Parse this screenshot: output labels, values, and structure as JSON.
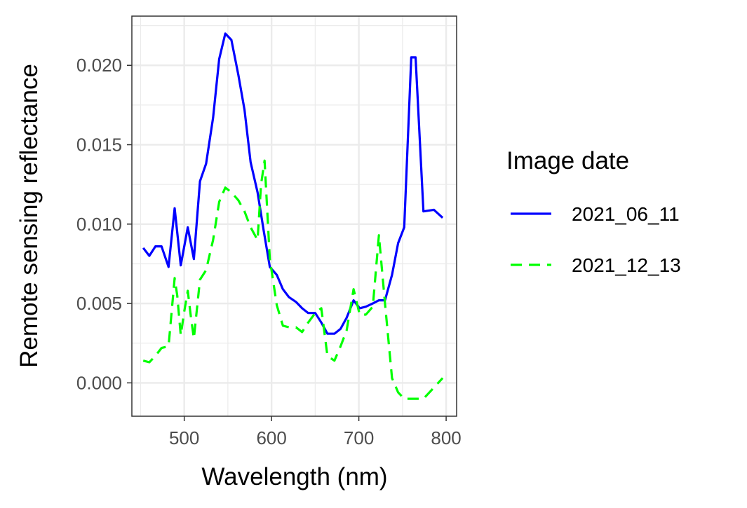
{
  "chart_data": {
    "type": "line",
    "title": "",
    "xlabel": "Wavelength (nm)",
    "ylabel": "Remote sensing reflectance",
    "xlim": [
      440,
      812
    ],
    "ylim": [
      -0.0021,
      0.0231
    ],
    "x_ticks": [
      500,
      600,
      700,
      800
    ],
    "x_tick_labels": [
      "500",
      "600",
      "700",
      "800"
    ],
    "y_ticks": [
      0.0,
      0.005,
      0.01,
      0.015,
      0.02
    ],
    "y_tick_labels": [
      "0.000",
      "0.005",
      "0.010",
      "0.015",
      "0.020"
    ],
    "grid": true,
    "legend": {
      "title": "Image date",
      "position": "right"
    },
    "series": [
      {
        "name": "2021_06_11",
        "color": "#0000ff",
        "dash": "solid",
        "x": [
          453,
          460,
          467,
          474,
          482,
          489,
          496,
          504,
          511,
          518,
          525,
          533,
          540,
          547,
          554,
          562,
          569,
          576,
          584,
          591,
          598,
          606,
          613,
          620,
          628,
          635,
          642,
          650,
          657,
          664,
          672,
          679,
          686,
          694,
          701,
          708,
          716,
          723,
          730,
          738,
          745,
          752,
          760,
          765,
          774,
          786,
          796
        ],
        "y": [
          0.0085,
          0.008,
          0.0086,
          0.0086,
          0.0073,
          0.011,
          0.0074,
          0.0098,
          0.0078,
          0.0127,
          0.0138,
          0.0167,
          0.0204,
          0.022,
          0.0216,
          0.0194,
          0.0172,
          0.0139,
          0.012,
          0.0096,
          0.0073,
          0.0068,
          0.0059,
          0.0054,
          0.0051,
          0.0047,
          0.0044,
          0.0044,
          0.0038,
          0.0031,
          0.0031,
          0.0034,
          0.0041,
          0.0052,
          0.0047,
          0.0048,
          0.005,
          0.0052,
          0.0052,
          0.0068,
          0.0088,
          0.0098,
          0.0205,
          0.0205,
          0.0108,
          0.0109,
          0.0104
        ]
      },
      {
        "name": "2021_12_13",
        "color": "#00ff00",
        "dash": "dashed",
        "x": [
          453,
          460,
          467,
          474,
          482,
          489,
          492,
          496,
          500,
          504,
          508,
          511,
          518,
          525,
          533,
          540,
          547,
          554,
          562,
          569,
          576,
          584,
          588,
          592,
          598,
          606,
          613,
          620,
          628,
          635,
          642,
          650,
          657,
          664,
          672,
          679,
          686,
          694,
          701,
          708,
          716,
          723,
          730,
          738,
          745,
          752,
          760,
          765,
          774,
          786,
          796
        ],
        "y": [
          0.0014,
          0.0013,
          0.0017,
          0.0022,
          0.0023,
          0.0066,
          0.0055,
          0.003,
          0.0045,
          0.0058,
          0.004,
          0.0028,
          0.0065,
          0.0071,
          0.009,
          0.0114,
          0.0123,
          0.012,
          0.0115,
          0.0108,
          0.0098,
          0.009,
          0.0125,
          0.014,
          0.0078,
          0.0049,
          0.0036,
          0.0035,
          0.0035,
          0.0032,
          0.0038,
          0.0044,
          0.0047,
          0.0017,
          0.0014,
          0.0023,
          0.0033,
          0.0059,
          0.0043,
          0.0043,
          0.0048,
          0.0093,
          0.005,
          0.0003,
          -0.0006,
          -0.001,
          -0.001,
          -0.001,
          -0.001,
          -0.0003,
          0.0003
        ]
      }
    ]
  }
}
